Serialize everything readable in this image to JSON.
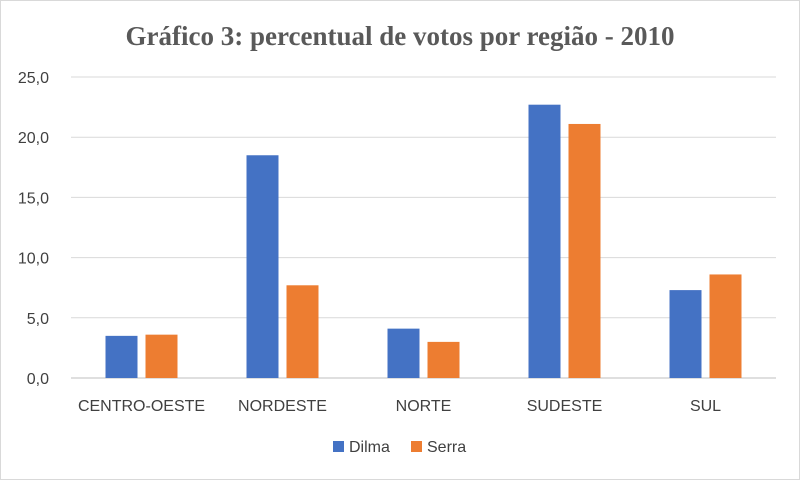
{
  "chart_data": {
    "type": "bar",
    "title": "Gráfico 3: percentual de votos por região - 2010",
    "xlabel": "",
    "ylabel": "",
    "categories": [
      "CENTRO-OESTE",
      "NORDESTE",
      "NORTE",
      "SUDESTE",
      "SUL"
    ],
    "series": [
      {
        "name": "Dilma",
        "color": "#4472C4",
        "values": [
          3.5,
          18.5,
          4.1,
          22.7,
          7.3
        ]
      },
      {
        "name": "Serra",
        "color": "#ED7D31",
        "values": [
          3.6,
          7.7,
          3.0,
          21.1,
          8.6
        ]
      }
    ],
    "ylim": [
      0,
      25
    ],
    "yticks": [
      "0,0",
      "5,0",
      "10,0",
      "15,0",
      "20,0",
      "25,0"
    ],
    "grid": true,
    "legend_position": "bottom"
  }
}
